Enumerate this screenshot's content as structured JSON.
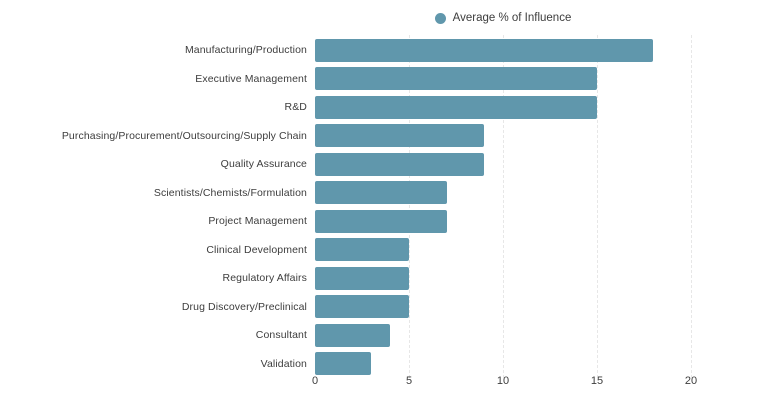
{
  "colors": {
    "bar": "#6097ac",
    "grid": "#e7e7e7",
    "text": "#3d3d3d",
    "background": "#ffffff"
  },
  "chart_data": {
    "type": "bar",
    "orientation": "horizontal",
    "series_name": "Average % of Influence",
    "categories": [
      "Manufacturing/Production",
      "Executive Management",
      "R&D",
      "Purchasing/Procurement/Outsourcing/Supply Chain",
      "Quality Assurance",
      "Scientists/Chemists/Formulation",
      "Project Management",
      "Clinical Development",
      "Regulatory Affairs",
      "Drug Discovery/Preclinical",
      "Consultant",
      "Validation"
    ],
    "values": [
      18,
      15,
      15,
      9,
      9,
      7,
      7,
      5,
      5,
      5,
      4,
      3
    ],
    "title": "",
    "xlabel": "",
    "ylabel": "",
    "xlim": [
      0,
      20
    ],
    "xticks": [
      0,
      5,
      10,
      15,
      20
    ],
    "grid": "vertical-dashed",
    "legend_position": "top-center"
  }
}
